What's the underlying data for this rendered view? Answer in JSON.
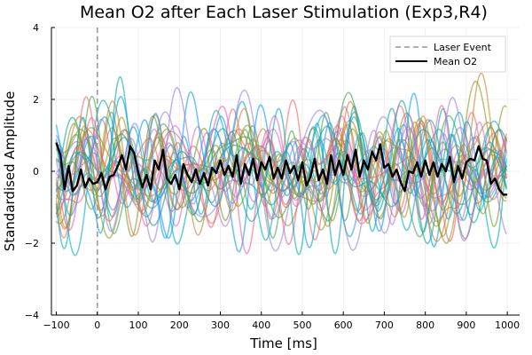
{
  "chart_data": {
    "type": "line",
    "title": "Mean O2 after Each Laser Stimulation (Exp3,R4)",
    "xlabel": "Time [ms]",
    "ylabel": "Standardised Amplitude",
    "xlim": [
      -112,
      1030
    ],
    "ylim": [
      -4,
      4
    ],
    "x_ticks": [
      -100,
      0,
      100,
      200,
      300,
      400,
      500,
      600,
      700,
      800,
      900,
      1000
    ],
    "x_tick_labels": [
      "−100",
      "0",
      "100",
      "200",
      "300",
      "400",
      "500",
      "600",
      "700",
      "800",
      "900",
      "1000"
    ],
    "y_ticks": [
      -4,
      -2,
      0,
      2,
      4
    ],
    "y_tick_labels": [
      "−4",
      "−2",
      "0",
      "2",
      "4"
    ],
    "grid": true,
    "legend_position": "top-right",
    "legend": [
      {
        "label": "Laser Event",
        "style": "dashed",
        "color": "#999999"
      },
      {
        "label": "Mean O2",
        "style": "solid",
        "color": "#000000"
      }
    ],
    "laser_event": {
      "x": 0
    },
    "mean_series": {
      "name": "Mean O2",
      "color": "#000000",
      "x": [
        -100,
        -90,
        -80,
        -70,
        -60,
        -50,
        -40,
        -30,
        -20,
        -10,
        0,
        10,
        20,
        30,
        40,
        50,
        60,
        70,
        80,
        90,
        100,
        110,
        120,
        130,
        140,
        150,
        160,
        170,
        180,
        190,
        200,
        210,
        220,
        230,
        240,
        250,
        260,
        270,
        280,
        290,
        300,
        310,
        320,
        330,
        340,
        350,
        360,
        370,
        380,
        390,
        400,
        410,
        420,
        430,
        440,
        450,
        460,
        470,
        480,
        490,
        500,
        510,
        520,
        530,
        540,
        550,
        560,
        570,
        580,
        590,
        600,
        610,
        620,
        630,
        640,
        650,
        660,
        670,
        680,
        690,
        700,
        710,
        720,
        730,
        740,
        750,
        760,
        770,
        780,
        790,
        800,
        810,
        820,
        830,
        840,
        850,
        860,
        870,
        880,
        890,
        900,
        910,
        920,
        930,
        940,
        950,
        960,
        970,
        980,
        990,
        1000
      ],
      "y": [
        0.8,
        0.45,
        -0.5,
        0.15,
        -0.55,
        -0.4,
        0.05,
        -0.45,
        -0.2,
        -0.35,
        -0.3,
        -0.05,
        -0.5,
        -0.15,
        -0.1,
        0.15,
        0.45,
        0.05,
        0.7,
        0.5,
        -0.05,
        -0.45,
        -0.1,
        -0.5,
        0.3,
        0.05,
        0.6,
        -0.2,
        -0.35,
        -0.1,
        -0.5,
        0.2,
        -0.1,
        -0.3,
        0.05,
        -0.35,
        -0.05,
        -0.4,
        0.1,
        -0.05,
        0.3,
        -0.1,
        0.15,
        -0.15,
        0.45,
        -0.35,
        0.2,
        -0.1,
        0.35,
        -0.25,
        0.25,
        0.05,
        0.4,
        -0.2,
        0.1,
        -0.2,
        0.3,
        -0.05,
        0.15,
        -0.25,
        0.25,
        -0.4,
        -0.15,
        0.35,
        -0.25,
        0.05,
        -0.35,
        0.45,
        -0.1,
        0.3,
        -0.1,
        0.45,
        0.05,
        0.6,
        -0.15,
        0.3,
        0.05,
        0.55,
        0.3,
        0.75,
        0.1,
        0.2,
        -0.15,
        0.05,
        -0.3,
        -0.55,
        0.0,
        -0.05,
        0.25,
        -0.15,
        0.3,
        -0.1,
        0.25,
        -0.15,
        0.2,
        0.0,
        0.4,
        -0.3,
        0.15,
        -0.2,
        0.25,
        0.35,
        0.3,
        0.7,
        0.35,
        0.3,
        -0.35,
        -0.2,
        -0.5,
        -0.65,
        -0.65
      ]
    },
    "trial_series_count": 28,
    "trial_colors": [
      "#009AFA",
      "#E36F47",
      "#3EA44E",
      "#C371D2",
      "#AC8E18",
      "#00A9AD",
      "#ED5E93",
      "#C68225",
      "#00A98D",
      "#8E971D",
      "#00A8CB",
      "#9B7FE9",
      "#618DF6",
      "#F16268",
      "#DC63BD",
      "#6E9A1E"
    ]
  }
}
